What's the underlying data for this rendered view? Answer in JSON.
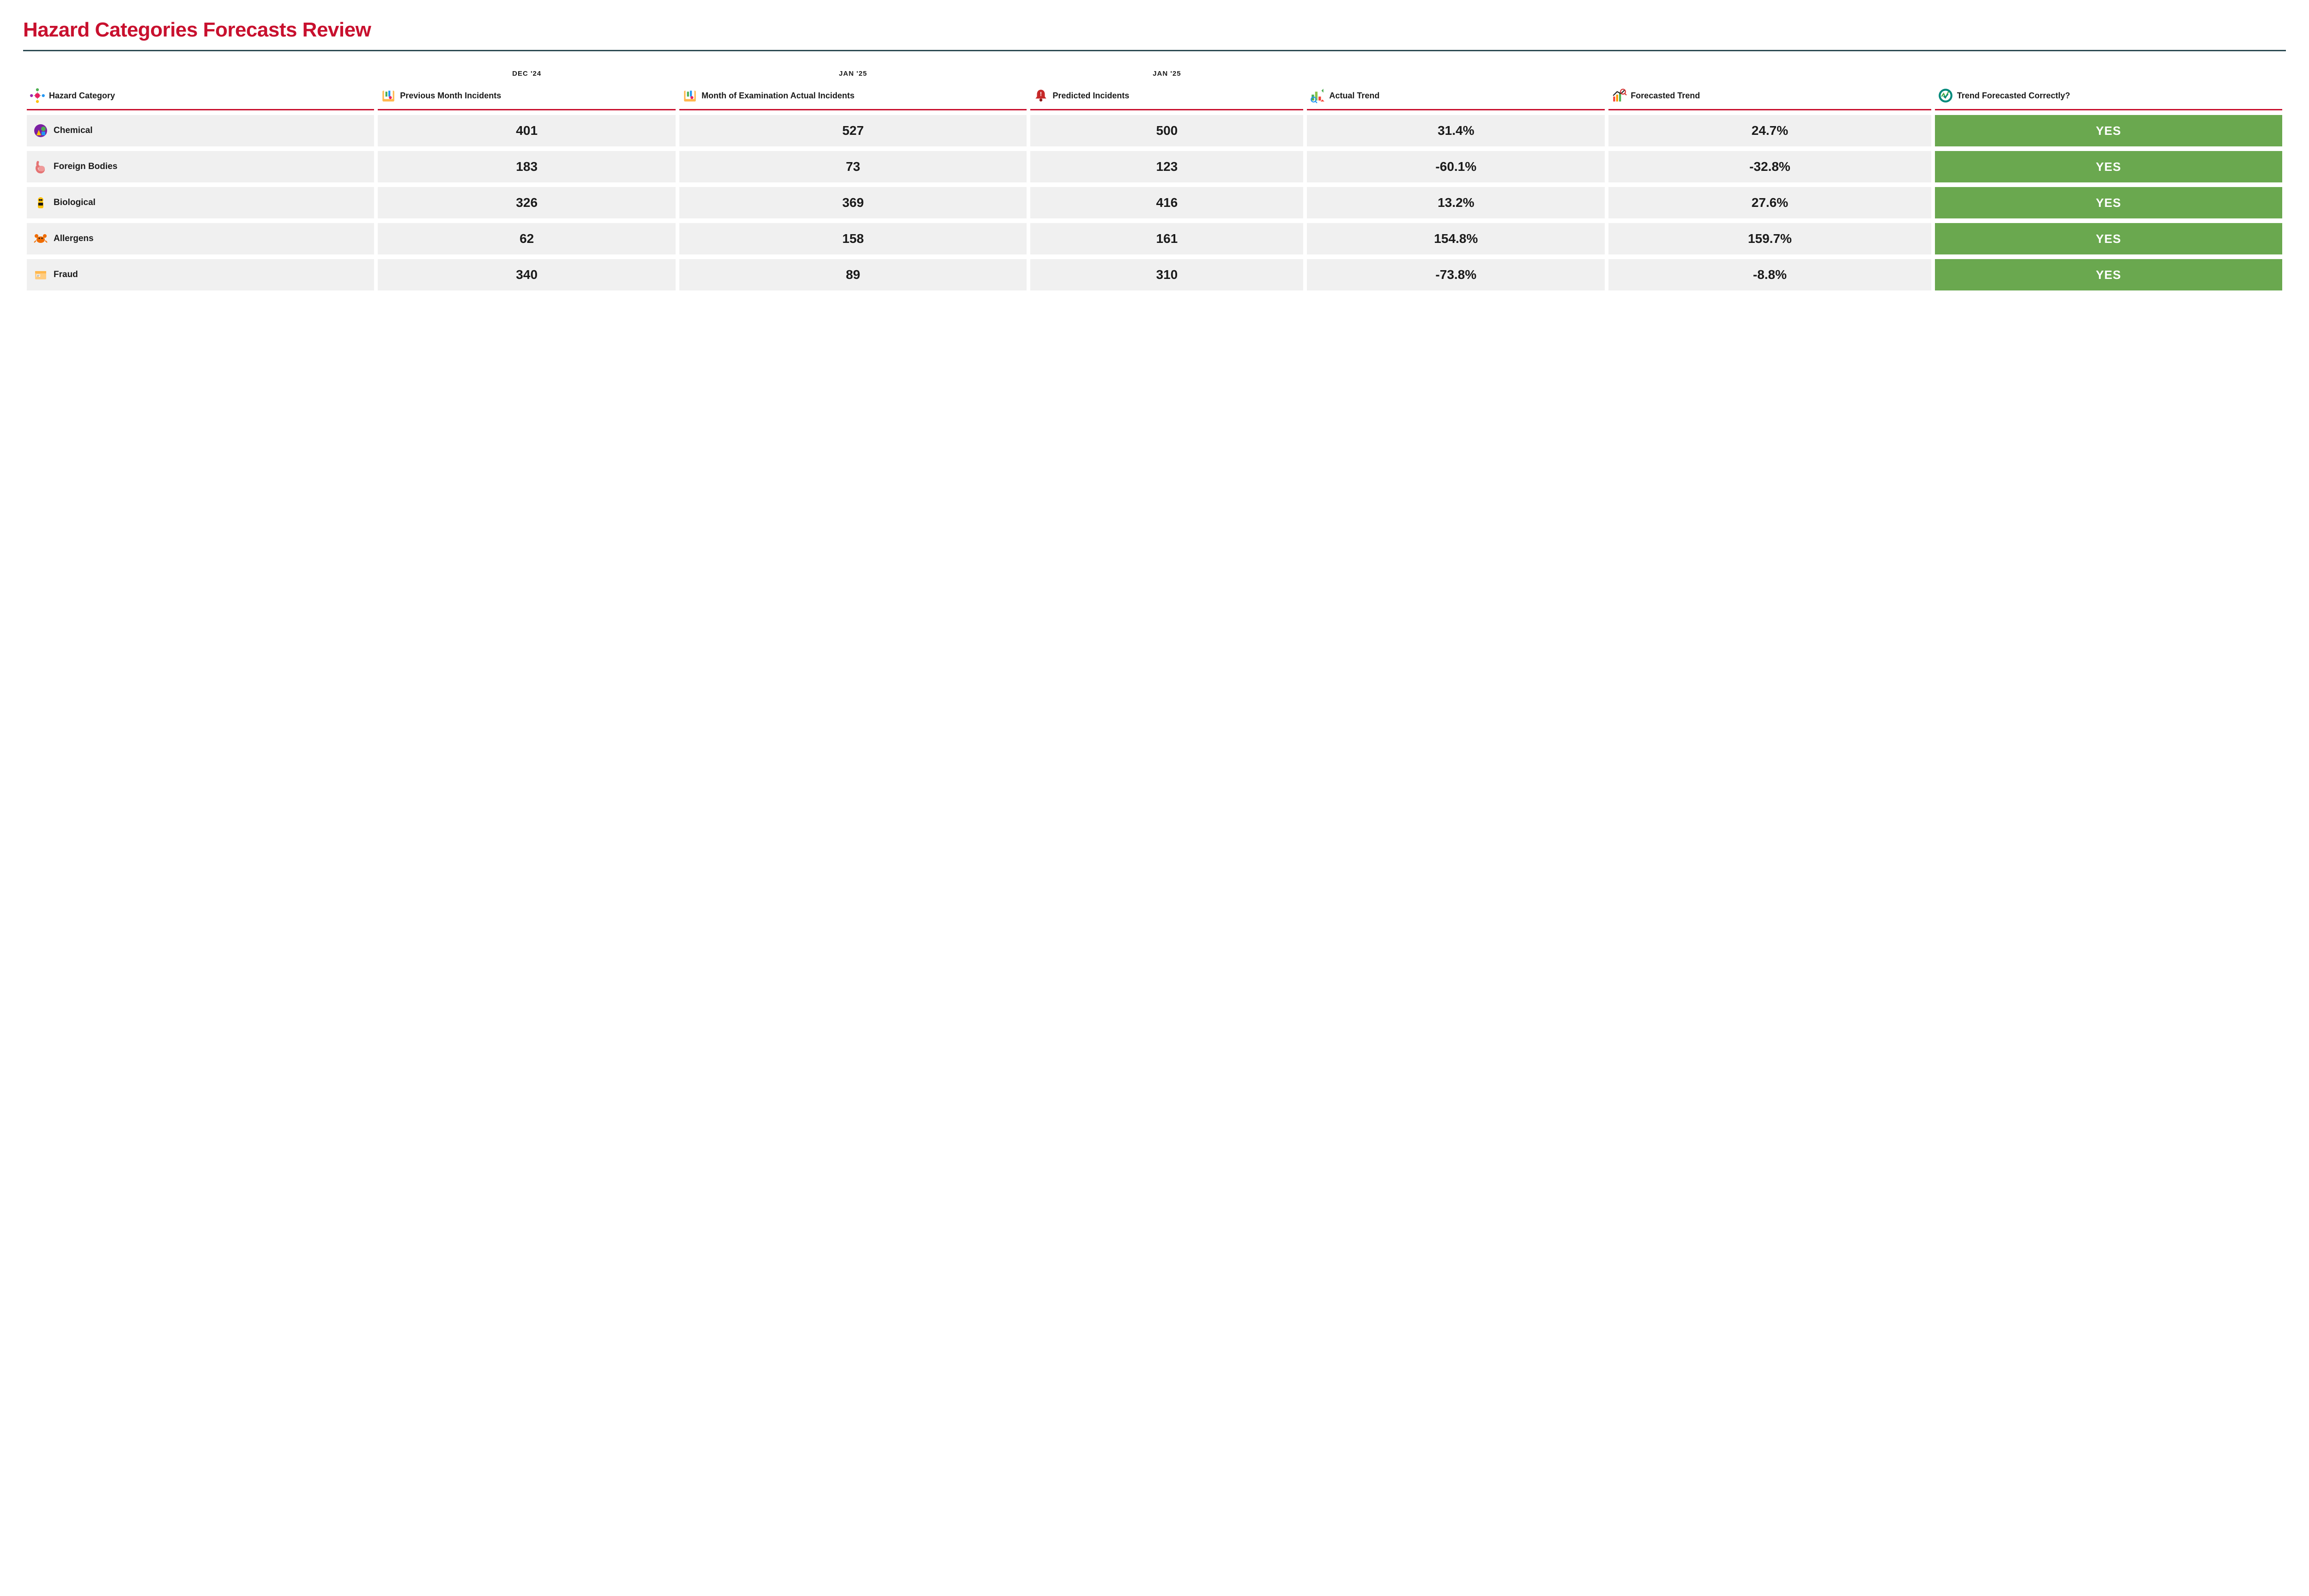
{
  "title": "Hazard Categories Forecasts Review",
  "colors": {
    "title": "#c8102e",
    "divider": "#2c4a52",
    "header_border": "#c8102e",
    "cell_bg": "#f0f0f0",
    "text": "#1a1a1a",
    "correct_yes_bg": "#6aa84f",
    "correct_text": "#ffffff",
    "background": "#ffffff"
  },
  "typography": {
    "title_fontsize": 44,
    "header_fontsize": 18,
    "value_fontsize": 28,
    "category_fontsize": 19,
    "correct_fontsize": 26,
    "date_tag_fontsize": 15
  },
  "date_tags": {
    "previous": "DEC '24",
    "actual": "JAN '25",
    "predicted": "JAN '25"
  },
  "columns": [
    {
      "key": "category",
      "label": "Hazard Category",
      "icon": "hub-icon"
    },
    {
      "key": "previous",
      "label": "Previous Month Incidents",
      "icon": "report-icon"
    },
    {
      "key": "actual",
      "label": "Month of Examination Actual Incidents",
      "icon": "report-icon"
    },
    {
      "key": "predicted",
      "label": "Predicted Incidents",
      "icon": "alert-bell-icon"
    },
    {
      "key": "actual_trend",
      "label": "Actual Trend",
      "icon": "trend-chart-icon"
    },
    {
      "key": "forecast_trend",
      "label": "Forecasted Trend",
      "icon": "forecast-chart-icon"
    },
    {
      "key": "correct",
      "label": "Trend Forecasted Correctly?",
      "icon": "check-badge-icon"
    }
  ],
  "rows": [
    {
      "category": "Chemical",
      "icon": "chemical-icon",
      "previous": "401",
      "actual": "527",
      "predicted": "500",
      "actual_trend": "31.4%",
      "forecast_trend": "24.7%",
      "correct": "YES"
    },
    {
      "category": "Foreign Bodies",
      "icon": "stomach-icon",
      "previous": "183",
      "actual": "73",
      "predicted": "123",
      "actual_trend": "-60.1%",
      "forecast_trend": "-32.8%",
      "correct": "YES"
    },
    {
      "category": "Biological",
      "icon": "biohazard-icon",
      "previous": "326",
      "actual": "369",
      "predicted": "416",
      "actual_trend": "13.2%",
      "forecast_trend": "27.6%",
      "correct": "YES"
    },
    {
      "category": "Allergens",
      "icon": "crab-icon",
      "previous": "62",
      "actual": "158",
      "predicted": "161",
      "actual_trend": "154.8%",
      "forecast_trend": "159.7%",
      "correct": "YES"
    },
    {
      "category": "Fraud",
      "icon": "package-icon",
      "previous": "340",
      "actual": "89",
      "predicted": "310",
      "actual_trend": "-73.8%",
      "forecast_trend": "-8.8%",
      "correct": "YES"
    }
  ]
}
